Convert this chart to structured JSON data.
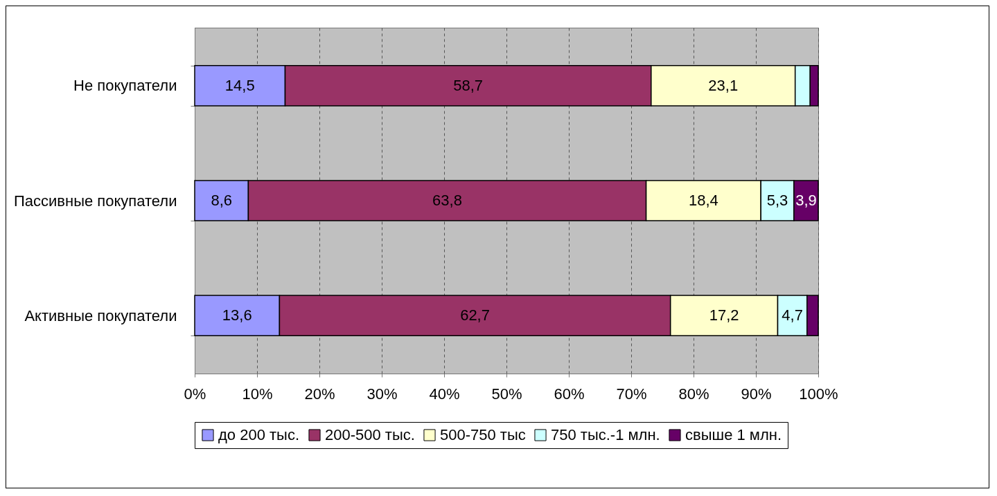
{
  "chart_data": {
    "type": "bar",
    "orientation": "horizontal",
    "stacked": true,
    "categories": [
      "Не покупатели",
      "Пассивные покупатели",
      "Активные покупатели"
    ],
    "series": [
      {
        "name": "до 200 тыс.",
        "color": "#9999ff",
        "values": [
          14.5,
          8.6,
          13.6
        ],
        "value_labels": [
          "14,5",
          "8,6",
          "13,6"
        ]
      },
      {
        "name": "200-500 тыс.",
        "color": "#993366",
        "values": [
          58.7,
          63.8,
          62.7
        ],
        "value_labels": [
          "58,7",
          "63,8",
          "62,7"
        ]
      },
      {
        "name": "500-750 тыс",
        "color": "#ffffcc",
        "values": [
          23.1,
          18.4,
          17.2
        ],
        "value_labels": [
          "23,1",
          "18,4",
          "17,2"
        ]
      },
      {
        "name": "750 тыс.-1 млн.",
        "color": "#ccffff",
        "values": [
          2.4,
          5.3,
          4.7
        ],
        "value_labels": [
          null,
          "5,3",
          "4,7"
        ]
      },
      {
        "name": "свыше 1 млн.",
        "color": "#660066",
        "values": [
          1.3,
          3.9,
          1.8
        ],
        "value_labels": [
          null,
          "3,9",
          null
        ]
      }
    ],
    "xlim": [
      0,
      100
    ],
    "xticks": [
      {
        "value": 0,
        "label": "0%"
      },
      {
        "value": 10,
        "label": "10%"
      },
      {
        "value": 20,
        "label": "20%"
      },
      {
        "value": 30,
        "label": "30%"
      },
      {
        "value": 40,
        "label": "40%"
      },
      {
        "value": 50,
        "label": "50%"
      },
      {
        "value": 60,
        "label": "60%"
      },
      {
        "value": 70,
        "label": "70%"
      },
      {
        "value": 80,
        "label": "80%"
      },
      {
        "value": 90,
        "label": "90%"
      },
      {
        "value": 100,
        "label": "100%"
      }
    ],
    "grid": "x",
    "legend": "bottom"
  }
}
